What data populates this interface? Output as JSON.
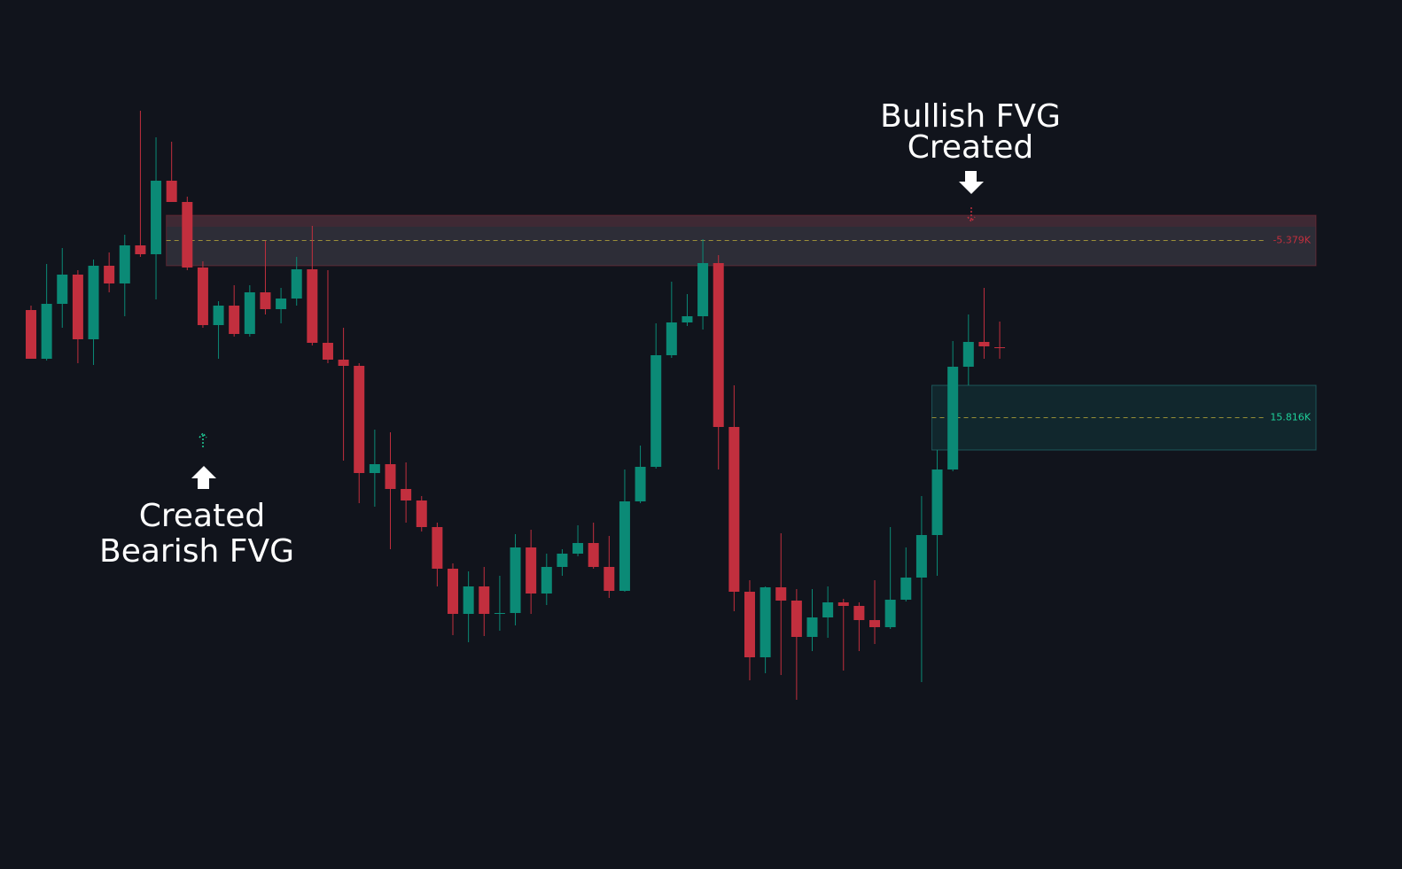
{
  "chart_data": {
    "type": "candlestick",
    "ylim": [
      0,
      981
    ],
    "up_color": "#0b8a76",
    "down_color": "#c22f3e",
    "open": [
      631,
      576,
      638,
      671,
      598,
      681,
      661,
      704,
      694,
      777,
      753,
      679,
      614,
      636,
      604,
      651,
      632,
      644,
      677,
      594,
      575,
      568,
      447,
      457,
      429,
      416,
      386,
      339,
      288,
      319,
      288,
      289,
      363,
      311,
      341,
      356,
      368,
      341,
      314,
      415,
      454,
      580,
      617,
      624,
      684,
      499,
      313,
      239,
      318,
      303,
      262,
      284,
      301,
      297,
      281,
      273,
      304,
      329,
      377,
      451,
      567,
      595,
      589
    ],
    "high": [
      636,
      683,
      701,
      676,
      688,
      696,
      716,
      856,
      826,
      821,
      759,
      686,
      641,
      659,
      659,
      709,
      656,
      691,
      726,
      676,
      611,
      571,
      496,
      493,
      459,
      421,
      391,
      345,
      336,
      341,
      331,
      378,
      383,
      356,
      361,
      388,
      391,
      376,
      451,
      478,
      616,
      663,
      649,
      711,
      693,
      546,
      326,
      319,
      379,
      316,
      316,
      319,
      305,
      301,
      326,
      386,
      363,
      421,
      473,
      596,
      626,
      656,
      618
    ],
    "low": [
      576,
      574,
      611,
      571,
      569,
      651,
      624,
      691,
      643,
      753,
      676,
      611,
      576,
      601,
      601,
      626,
      616,
      636,
      591,
      571,
      461,
      413,
      409,
      361,
      391,
      381,
      319,
      264,
      256,
      263,
      269,
      275,
      288,
      298,
      331,
      353,
      339,
      306,
      313,
      413,
      452,
      577,
      613,
      609,
      451,
      291,
      213,
      221,
      219,
      191,
      246,
      261,
      224,
      246,
      254,
      271,
      302,
      211,
      331,
      449,
      546,
      576,
      576
    ],
    "close": [
      576,
      638,
      671,
      598,
      681,
      661,
      704,
      694,
      777,
      753,
      679,
      614,
      636,
      604,
      651,
      632,
      644,
      677,
      594,
      575,
      568,
      447,
      457,
      429,
      416,
      386,
      339,
      288,
      319,
      288,
      289,
      363,
      311,
      341,
      356,
      368,
      341,
      314,
      415,
      454,
      580,
      617,
      624,
      684,
      499,
      313,
      239,
      318,
      303,
      262,
      284,
      301,
      297,
      281,
      273,
      304,
      329,
      377,
      451,
      567,
      595,
      590,
      588
    ],
    "zones": [
      {
        "label": "-5.379K",
        "color": "#c22f3e",
        "top": 738,
        "bottom": 681,
        "from": 9
      },
      {
        "label": "15.816K",
        "color": "#1fd19a",
        "top": 546,
        "bottom": 473,
        "from": 58
      }
    ],
    "annotations": [
      {
        "lines": [
          "Bullish FVG",
          "Created"
        ]
      },
      {
        "lines": [
          "Created",
          "Bearish FVG"
        ]
      }
    ]
  }
}
